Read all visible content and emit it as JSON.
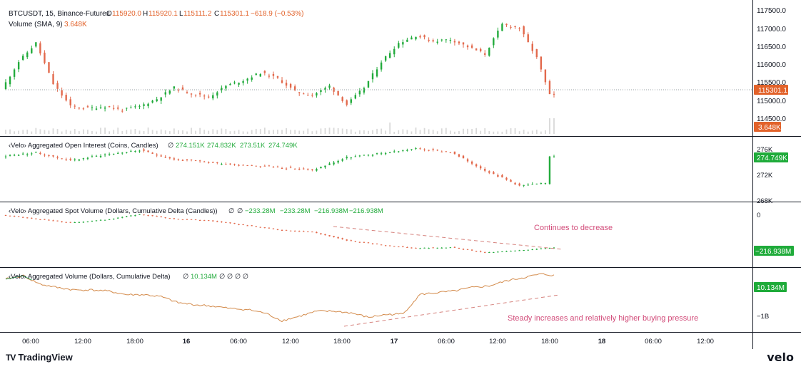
{
  "colors": {
    "up": "#22ab3c",
    "down": "#e2694c",
    "axis_badge_price": "#e2622a",
    "axis_badge_green": "#1fab3a",
    "annotation": "#d24c7a",
    "cum_line": "#d38a4a",
    "grid": "#e6e6e6"
  },
  "header": {
    "symbol": "BTCUSDT, 15, Binance-Futures",
    "o_label": "O",
    "o": "115920.0",
    "h_label": "H",
    "h": "115920.1",
    "l_label": "L",
    "l": "115111.2",
    "c_label": "C",
    "c": "115301.1",
    "change": "−618.9 (−0.53%)",
    "volume_label": "Volume (SMA, 9)",
    "volume_value": "3.648K"
  },
  "oi_legend": {
    "label": "‹Velo› Aggregated Open Interest (Coins, Candles)",
    "ind": "∅",
    "v1": "274.151K",
    "v2": "274.832K",
    "v3": "273.51K",
    "v4": "274.749K"
  },
  "spot_legend": {
    "label": "‹Velo› Aggregated Spot Volume (Dollars, Cumulative Delta (Candles))",
    "ind1": "∅",
    "ind2": "∅",
    "v1": "−233.28M",
    "v2": "−233.28M",
    "v3": "−216.938M",
    "v4": "−216.938M"
  },
  "agg_legend": {
    "label": "‹Velo› Aggregated Volume (Dollars, Cumulative Delta)",
    "ind": "∅",
    "v1": "10.134M",
    "rest": "∅ ∅ ∅ ∅"
  },
  "annotations": {
    "spot": "Continues to decrease",
    "agg": "Steady increases and relatively higher buying pressure"
  },
  "axes": {
    "price_ticks": [
      "117500.0",
      "117000.0",
      "116500.0",
      "116000.0",
      "115500.0",
      "115000.0",
      "114500.0"
    ],
    "price_badge": "115301.1",
    "volume_badge": "3.648K",
    "oi_ticks": [
      "276K",
      "272K",
      "268K"
    ],
    "oi_badge": "274.749K",
    "spot_ticks": [
      "0"
    ],
    "spot_badge": "−216.938M",
    "agg_ticks": [
      "−1B"
    ],
    "agg_badge": "10.134M",
    "time_ticks": [
      "06:00",
      "12:00",
      "18:00",
      "16",
      "06:00",
      "12:00",
      "18:00",
      "17",
      "06:00",
      "12:00",
      "18:00",
      "18",
      "06:00",
      "12:00"
    ]
  },
  "footer": {
    "tv_mark": "TV",
    "tv_name": "TradingView",
    "velo": "velo"
  },
  "chart_data": {
    "type": "candlestick",
    "interval": "15m",
    "x_range": [
      "Aug 15 ~03:00",
      "Aug 17 ~18:30"
    ],
    "panes": [
      {
        "name": "BTCUSDT price",
        "ylim": [
          114300,
          117700
        ],
        "points_hours": [
          0,
          2,
          4,
          6,
          8,
          10,
          12,
          14,
          16,
          18,
          20,
          22,
          24,
          26,
          28,
          30,
          32,
          34,
          36,
          38,
          40,
          42,
          44,
          46,
          48,
          50,
          52,
          54,
          56,
          58,
          60,
          62,
          63.5
        ],
        "values": [
          115450,
          116200,
          116700,
          115600,
          115000,
          114950,
          115000,
          114900,
          115000,
          115200,
          115500,
          115350,
          115250,
          115550,
          115700,
          115900,
          115750,
          115400,
          115300,
          115550,
          115050,
          115500,
          116200,
          116700,
          116900,
          116750,
          116800,
          116600,
          116400,
          117200,
          117100,
          116300,
          115301
        ]
      },
      {
        "name": "Aggregated Open Interest",
        "ylim": [
          267500,
          277500
        ],
        "points_hours": [
          0,
          4,
          8,
          12,
          16,
          20,
          24,
          28,
          32,
          36,
          40,
          44,
          48,
          52,
          56,
          60,
          63,
          63.5
        ],
        "values": [
          274700,
          275300,
          274000,
          275000,
          275700,
          274200,
          273700,
          273300,
          272900,
          272400,
          274500,
          275200,
          276000,
          275400,
          272400,
          269800,
          270200,
          274749
        ]
      },
      {
        "name": "Aggregated Spot Volume Cumulative Delta",
        "ylim": [
          -330000000,
          60000000
        ],
        "points_hours": [
          0,
          4,
          8,
          12,
          16,
          20,
          24,
          28,
          32,
          36,
          40,
          44,
          48,
          52,
          56,
          60,
          63.5
        ],
        "values": [
          -5000000,
          -30000000,
          -55000000,
          -35000000,
          0,
          -30000000,
          -40000000,
          -70000000,
          -100000000,
          -115000000,
          -170000000,
          -200000000,
          -220000000,
          -215000000,
          -250000000,
          -235000000,
          -216938000
        ]
      },
      {
        "name": "Aggregated Volume Cumulative Delta",
        "ylim": [
          -1600000000,
          150000000
        ],
        "points_hours": [
          0,
          2,
          4,
          6,
          8,
          10,
          12,
          14,
          16,
          18,
          20,
          22,
          24,
          26,
          28,
          30,
          32,
          34,
          36,
          38,
          40,
          42,
          44,
          46,
          48,
          50,
          52,
          54,
          56,
          58,
          60,
          62,
          63.5
        ],
        "values": [
          -100000000,
          0,
          -250000000,
          -350000000,
          -420000000,
          -420000000,
          -460000000,
          -560000000,
          -560000000,
          -620000000,
          -800000000,
          -860000000,
          -900000000,
          -970000000,
          -1000000000,
          -1100000000,
          -1330000000,
          -1200000000,
          -1050000000,
          -1050000000,
          -1100000000,
          -1230000000,
          -1150000000,
          -1130000000,
          -550000000,
          -500000000,
          -450000000,
          -350000000,
          -300000000,
          -150000000,
          -50000000,
          50000000,
          10134000
        ]
      }
    ]
  }
}
